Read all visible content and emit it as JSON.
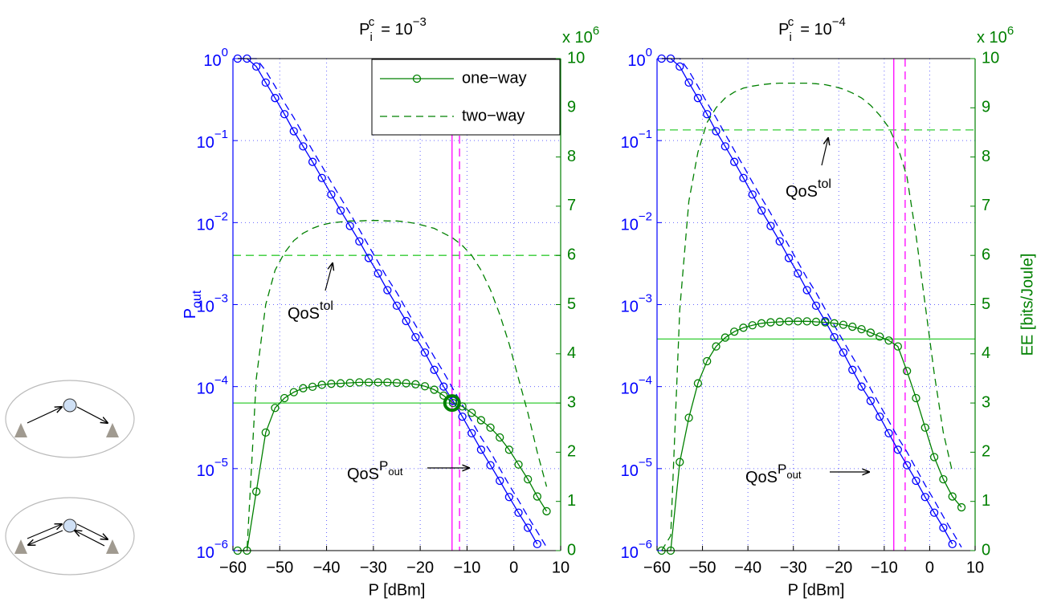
{
  "chart_data": [
    {
      "type": "line",
      "title": {
        "base": "P",
        "sub": "i",
        "sup": "c",
        "eq": "= 10",
        "exp": "−3"
      },
      "xlabel": "P [dBm]",
      "ylabel": {
        "text": "P",
        "sub": "out"
      },
      "y2_multiplier": {
        "text": "x 10",
        "exp": "6"
      },
      "x": [
        -59,
        -57,
        -55,
        -53,
        -51,
        -49,
        -47,
        -45,
        -43,
        -41,
        -39,
        -37,
        -35,
        -33,
        -31,
        -29,
        -27,
        -25,
        -23,
        -21,
        -19,
        -17,
        -15,
        -13,
        -11,
        -9,
        -7,
        -5,
        -3,
        -1,
        1,
        3,
        5,
        7
      ],
      "xlim": [
        -60,
        10
      ],
      "xticks": [
        {
          "value": -60,
          "label": "−60"
        },
        {
          "value": -50,
          "label": "−50"
        },
        {
          "value": -40,
          "label": "−40"
        },
        {
          "value": -30,
          "label": "−30"
        },
        {
          "value": -20,
          "label": "−20"
        },
        {
          "value": -10,
          "label": "−10"
        },
        0,
        10
      ],
      "ylog": true,
      "ylim": [
        1e-06,
        1
      ],
      "yticks": [
        {
          "value": 1e-06,
          "label": "10",
          "exp": "−6"
        },
        {
          "value": 1e-05,
          "label": "10",
          "exp": "−5"
        },
        {
          "value": 0.0001,
          "label": "10",
          "exp": "−4"
        },
        {
          "value": 0.001,
          "label": "10",
          "exp": "−3"
        },
        {
          "value": 0.01,
          "label": "10",
          "exp": "−2"
        },
        {
          "value": 0.1,
          "label": "10",
          "exp": "−1"
        },
        {
          "value": 1,
          "label": "10",
          "exp": "0"
        }
      ],
      "y2lim": [
        0,
        10
      ],
      "y2ticks": [
        0,
        1,
        2,
        3,
        4,
        5,
        6,
        7,
        8,
        9,
        10
      ],
      "grid": true,
      "legend": "upper right",
      "series": [
        {
          "color": "#0000ff",
          "marker": "circle",
          "values": [
            1,
            1,
            0.8,
            0.51,
            0.33,
            0.21,
            0.13,
            0.085,
            0.055,
            0.035,
            0.022,
            0.014,
            0.0091,
            0.0059,
            0.0037,
            0.0024,
            0.0015,
            0.00097,
            0.00063,
            0.0004,
            0.00026,
            0.00016,
            0.0001,
            6.7e-05,
            4.3e-05,
            2.7e-05,
            1.7e-05,
            1.1e-05,
            7.1e-06,
            4.5e-06,
            2.9e-06,
            1.9e-06,
            1.2e-06,
            null
          ]
        },
        {
          "color": "#0000ff",
          "dash": true,
          "values": [
            1,
            1,
            1,
            0.71,
            0.46,
            0.29,
            0.19,
            0.12,
            0.076,
            0.049,
            0.031,
            0.02,
            0.013,
            0.0082,
            0.0052,
            0.0033,
            0.0021,
            0.0014,
            0.00088,
            0.00056,
            0.00036,
            0.00023,
            0.00015,
            9.4e-05,
            6e-05,
            3.8e-05,
            2.4e-05,
            1.6e-05,
            1e-05,
            6.3e-06,
            4.1e-06,
            2.6e-06,
            1.7e-06,
            1.1e-06
          ]
        },
        {
          "name": "one−way",
          "axis": "y2",
          "color": "#008000",
          "marker": "circle",
          "values": [
            0,
            0,
            1.2,
            2.4,
            2.9,
            3.1,
            3.22,
            3.3,
            3.33,
            3.37,
            3.39,
            3.4,
            3.41,
            3.42,
            3.42,
            3.42,
            3.42,
            3.41,
            3.4,
            3.38,
            3.34,
            3.27,
            3.15,
            3.0,
            2.93,
            2.8,
            2.65,
            2.5,
            2.3,
            2.05,
            1.75,
            1.45,
            1.1,
            0.8
          ]
        },
        {
          "name": "two−way",
          "axis": "y2",
          "color": "#008000",
          "dash": true,
          "values": [
            0,
            0,
            3.5,
            5.0,
            5.7,
            6.05,
            6.3,
            6.45,
            6.55,
            6.62,
            6.66,
            6.68,
            6.7,
            6.7,
            6.71,
            6.71,
            6.7,
            6.7,
            6.68,
            6.65,
            6.6,
            6.55,
            6.45,
            6.35,
            6.2,
            6.0,
            5.7,
            5.3,
            4.8,
            4.2,
            3.5,
            2.8,
            2.0,
            1.3
          ]
        }
      ],
      "reference_lines": [
        {
          "axis": "y2",
          "value": 6,
          "dash": true,
          "color": "#33cc33"
        },
        {
          "axis": "y2",
          "value": 3,
          "color": "#33cc33"
        },
        {
          "axis": "x",
          "value": -13.2,
          "color": "#ff00ff"
        },
        {
          "axis": "x",
          "value": -11.6,
          "dash": true,
          "color": "#ff00ff"
        }
      ],
      "highlight": {
        "x": -13.2,
        "y2": 3,
        "color": "#008000"
      },
      "annotations": [
        {
          "text": "QoS",
          "sup": "tol"
        },
        {
          "text": "QoS",
          "sup": "P",
          "sub": "out"
        }
      ]
    },
    {
      "type": "line",
      "title": {
        "base": "P",
        "sub": "i",
        "sup": "c",
        "eq": "= 10",
        "exp": "−4"
      },
      "xlabel": "P [dBm]",
      "y2label": "EE [bits/Joule]",
      "y2_multiplier": {
        "text": "x 10",
        "exp": "6"
      },
      "x": [
        -59,
        -57,
        -55,
        -53,
        -51,
        -49,
        -47,
        -45,
        -43,
        -41,
        -39,
        -37,
        -35,
        -33,
        -31,
        -29,
        -27,
        -25,
        -23,
        -21,
        -19,
        -17,
        -15,
        -13,
        -11,
        -9,
        -7,
        -5,
        -3,
        -1,
        1,
        3,
        5,
        7
      ],
      "xlim": [
        -60,
        10
      ],
      "xticks": [
        {
          "value": -60,
          "label": "−60"
        },
        {
          "value": -50,
          "label": "−50"
        },
        {
          "value": -40,
          "label": "−40"
        },
        {
          "value": -30,
          "label": "−30"
        },
        {
          "value": -20,
          "label": "−20"
        },
        {
          "value": -10,
          "label": "−10"
        },
        0,
        10
      ],
      "ylog": true,
      "ylim": [
        1e-06,
        1
      ],
      "yticks": [
        {
          "value": 1e-06,
          "label": "10",
          "exp": "−6"
        },
        {
          "value": 1e-05,
          "label": "10",
          "exp": "−5"
        },
        {
          "value": 0.0001,
          "label": "10",
          "exp": "−4"
        },
        {
          "value": 0.001,
          "label": "10",
          "exp": "−3"
        },
        {
          "value": 0.01,
          "label": "10",
          "exp": "−2"
        },
        {
          "value": 0.1,
          "label": "10",
          "exp": "−1"
        },
        {
          "value": 1,
          "label": "10",
          "exp": "0"
        }
      ],
      "y2lim": [
        0,
        10
      ],
      "y2ticks": [
        0,
        1,
        2,
        3,
        4,
        5,
        6,
        7,
        8,
        9,
        10
      ],
      "grid": true,
      "series": [
        {
          "color": "#0000ff",
          "marker": "circle",
          "values": [
            1,
            1,
            0.8,
            0.51,
            0.33,
            0.21,
            0.13,
            0.085,
            0.055,
            0.035,
            0.022,
            0.014,
            0.0091,
            0.0059,
            0.0037,
            0.0024,
            0.0015,
            0.00097,
            0.00063,
            0.0004,
            0.00026,
            0.00016,
            0.0001,
            6.7e-05,
            4.3e-05,
            2.7e-05,
            1.7e-05,
            1.1e-05,
            7.1e-06,
            4.5e-06,
            2.9e-06,
            1.9e-06,
            1.2e-06,
            null
          ]
        },
        {
          "color": "#0000ff",
          "dash": true,
          "values": [
            1,
            1,
            1,
            0.71,
            0.46,
            0.29,
            0.19,
            0.12,
            0.076,
            0.049,
            0.031,
            0.02,
            0.013,
            0.0082,
            0.0052,
            0.0033,
            0.0021,
            0.0014,
            0.00088,
            0.00056,
            0.00036,
            0.00023,
            0.00015,
            9.4e-05,
            6e-05,
            3.8e-05,
            2.4e-05,
            1.6e-05,
            1e-05,
            6.3e-06,
            4.1e-06,
            2.6e-06,
            1.7e-06,
            1.1e-06
          ]
        },
        {
          "axis": "y2",
          "color": "#008000",
          "marker": "circle",
          "values": [
            0,
            0,
            1.8,
            2.7,
            3.4,
            3.85,
            4.15,
            4.33,
            4.45,
            4.53,
            4.58,
            4.62,
            4.64,
            4.65,
            4.66,
            4.66,
            4.66,
            4.65,
            4.64,
            4.62,
            4.59,
            4.55,
            4.5,
            4.43,
            4.35,
            4.27,
            4.15,
            3.65,
            3.1,
            2.5,
            1.9,
            1.45,
            1.1,
            0.88
          ]
        },
        {
          "axis": "y2",
          "color": "#008000",
          "dash": true,
          "values": [
            0,
            0.3,
            4.9,
            7.1,
            8.1,
            8.7,
            9.0,
            9.2,
            9.32,
            9.4,
            9.44,
            9.47,
            9.49,
            9.5,
            9.5,
            9.5,
            9.5,
            9.49,
            9.47,
            9.43,
            9.38,
            9.3,
            9.2,
            9.05,
            8.85,
            8.6,
            8.2,
            7.6,
            6.4,
            5.0,
            3.6,
            2.4,
            1.6,
            null
          ]
        }
      ],
      "reference_lines": [
        {
          "axis": "y2",
          "value": 8.55,
          "dash": true,
          "color": "#33cc33"
        },
        {
          "axis": "y2",
          "value": 4.3,
          "color": "#33cc33"
        },
        {
          "axis": "x",
          "value": -7.9,
          "color": "#ff00ff"
        },
        {
          "axis": "x",
          "value": -5.4,
          "dash": true,
          "color": "#ff00ff"
        }
      ],
      "annotations": [
        {
          "text": "QoS",
          "sup": "tol"
        },
        {
          "text": "QoS",
          "sup": "P",
          "sub": "out"
        }
      ]
    }
  ]
}
